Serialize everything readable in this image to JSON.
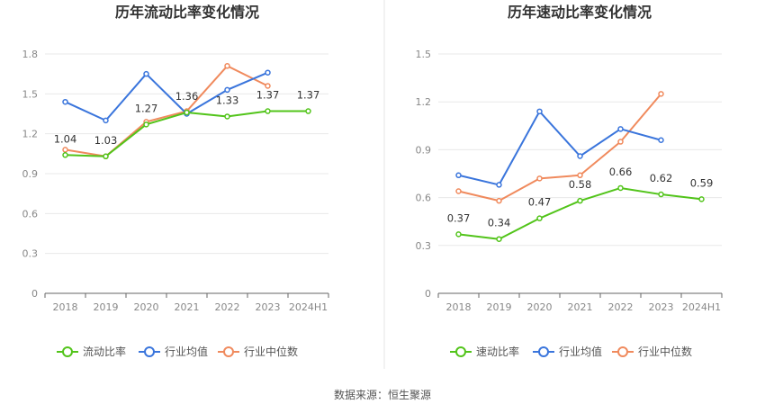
{
  "colors": {
    "series1": "#52c41a",
    "series2": "#3a75dc",
    "series3": "#f08a5d",
    "grid": "#e8e8e8",
    "axis": "#666666",
    "divider": "#e6e6e6"
  },
  "source_text": "数据来源：恒生聚源",
  "chart_data": [
    {
      "type": "line",
      "title": "历年流动比率变化情况",
      "categories": [
        "2018",
        "2019",
        "2020",
        "2021",
        "2022",
        "2023",
        "2024H1"
      ],
      "y_ticks": [
        "0",
        "0.3",
        "0.6",
        "0.9",
        "1.2",
        "1.5",
        "1.8"
      ],
      "ylim": [
        0,
        1.8
      ],
      "grid": true,
      "legend_position": "bottom",
      "series": [
        {
          "name": "流动比率",
          "values": [
            1.04,
            1.03,
            1.27,
            1.36,
            1.33,
            1.37,
            1.37
          ],
          "labels": [
            "1.04",
            "1.03",
            "1.27",
            "1.36",
            "1.33",
            "1.37",
            "1.37"
          ]
        },
        {
          "name": "行业均值",
          "values": [
            1.44,
            1.3,
            1.65,
            1.35,
            1.53,
            1.66,
            null
          ]
        },
        {
          "name": "行业中位数",
          "values": [
            1.08,
            1.03,
            1.29,
            1.37,
            1.71,
            1.56,
            null
          ]
        }
      ]
    },
    {
      "type": "line",
      "title": "历年速动比率变化情况",
      "categories": [
        "2018",
        "2019",
        "2020",
        "2021",
        "2022",
        "2023",
        "2024H1"
      ],
      "y_ticks": [
        "0",
        "0.3",
        "0.6",
        "0.9",
        "1.2",
        "1.5"
      ],
      "ylim": [
        0,
        1.5
      ],
      "grid": true,
      "legend_position": "bottom",
      "series": [
        {
          "name": "速动比率",
          "values": [
            0.37,
            0.34,
            0.47,
            0.58,
            0.66,
            0.62,
            0.59
          ],
          "labels": [
            "0.37",
            "0.34",
            "0.47",
            "0.58",
            "0.66",
            "0.62",
            "0.59"
          ]
        },
        {
          "name": "行业均值",
          "values": [
            0.74,
            0.68,
            1.14,
            0.86,
            1.03,
            0.96,
            null
          ]
        },
        {
          "name": "行业中位数",
          "values": [
            0.64,
            0.58,
            0.72,
            0.74,
            0.95,
            1.25,
            null
          ]
        }
      ]
    }
  ]
}
